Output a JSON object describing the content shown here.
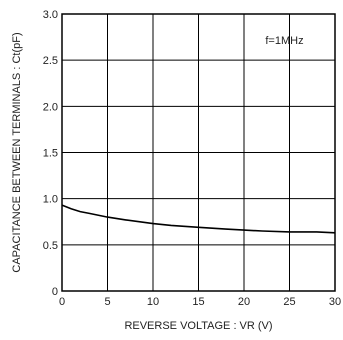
{
  "chart_data": {
    "type": "line",
    "xlabel": "REVERSE VOLTAGE : VR (V)",
    "ylabel": "CAPACITANCE BETWEEN TERMINALS : Ct(pF)",
    "annotation": "f=1MHz",
    "xlim": [
      0,
      30
    ],
    "ylim": [
      0,
      3.0
    ],
    "xticks": [
      "0",
      "5",
      "10",
      "15",
      "20",
      "25",
      "30"
    ],
    "yticks": [
      "0",
      "0.5",
      "1.0",
      "1.5",
      "2.0",
      "2.5",
      "3.0"
    ],
    "grid": true,
    "series": [
      {
        "x": [
          0,
          1,
          2,
          3,
          5,
          7,
          10,
          12,
          15,
          18,
          20,
          22,
          25,
          28,
          30
        ],
        "y": [
          0.93,
          0.89,
          0.86,
          0.84,
          0.8,
          0.77,
          0.73,
          0.71,
          0.69,
          0.67,
          0.66,
          0.65,
          0.64,
          0.64,
          0.63
        ]
      }
    ]
  }
}
